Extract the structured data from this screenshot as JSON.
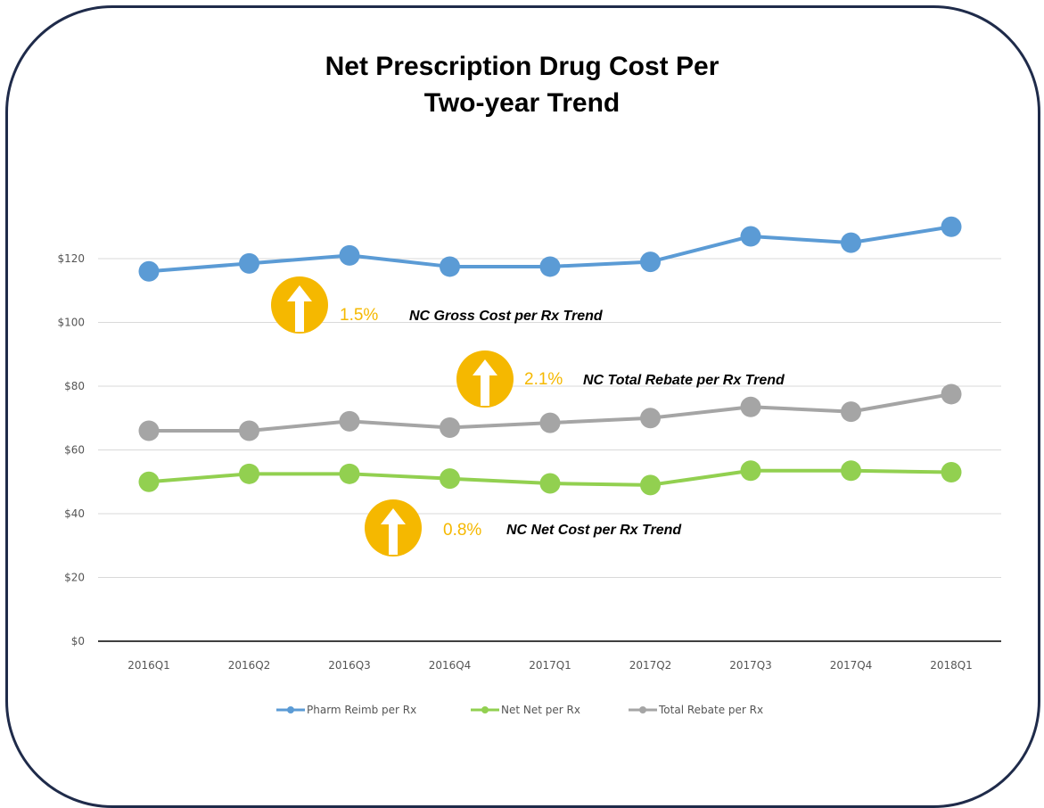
{
  "title_line1": "Net Prescription Drug Cost Per",
  "title_line2": "Two-year Trend",
  "chart_data": {
    "type": "line",
    "categories": [
      "2016Q1",
      "2016Q2",
      "2016Q3",
      "2016Q4",
      "2017Q1",
      "2017Q2",
      "2017Q3",
      "2017Q4",
      "2018Q1"
    ],
    "ylim": [
      0,
      140
    ],
    "yticks": [
      0,
      20,
      40,
      60,
      80,
      100,
      120
    ],
    "ytick_labels": [
      "$0",
      "$20",
      "$40",
      "$60",
      "$80",
      "$100",
      "$120"
    ],
    "grid": true,
    "legend_position": "bottom",
    "series": [
      {
        "name": "Pharm Reimb per Rx",
        "color": "#5b9bd5",
        "values": [
          116,
          118.5,
          121,
          117.5,
          117.5,
          119,
          127,
          125,
          130
        ]
      },
      {
        "name": "Net Net per Rx",
        "color": "#92d050",
        "values": [
          50,
          52.5,
          52.5,
          51,
          49.5,
          49,
          53.5,
          53.5,
          53
        ]
      },
      {
        "name": "Total Rebate per Rx",
        "color": "#a5a5a5",
        "values": [
          66,
          66,
          69,
          67,
          68.5,
          70,
          73.5,
          72,
          77.5
        ]
      }
    ],
    "annotations": [
      {
        "pct": "1.5%",
        "label": "NC Gross Cost per Rx Trend",
        "icon": "up-arrow-circle-icon"
      },
      {
        "pct": "2.1%",
        "label": "NC Total Rebate per Rx Trend",
        "icon": "up-arrow-circle-icon"
      },
      {
        "pct": "0.8%",
        "label": "NC Net Cost per Rx Trend",
        "icon": "up-arrow-circle-icon"
      }
    ]
  }
}
